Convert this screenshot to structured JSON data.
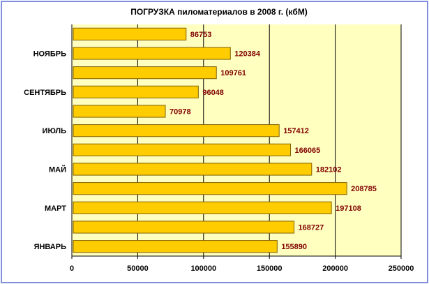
{
  "chart_data": {
    "type": "bar",
    "orientation": "horizontal",
    "title": "ПОГРУЗКА пиломатериалов  в 2008 г. (кбМ)",
    "xlabel": "",
    "ylabel": "",
    "categories": [
      "ЯНВАРЬ",
      "",
      "МАРТ",
      "",
      "МАЙ",
      "",
      "ИЮЛЬ",
      "",
      "СЕНТЯБРЬ",
      "",
      "НОЯБРЬ",
      ""
    ],
    "values": [
      155890,
      168727,
      197108,
      208785,
      182102,
      166065,
      157412,
      70978,
      96048,
      109761,
      120384,
      86753
    ],
    "data_labels": [
      "155890",
      "168727",
      "197108",
      "208785",
      "182102",
      "166065",
      "157412",
      "70978",
      "96048",
      "109761",
      "120384",
      "86753"
    ],
    "xlim": [
      0,
      250000
    ],
    "x_ticks": [
      0,
      50000,
      100000,
      150000,
      200000,
      250000
    ],
    "x_tick_labels": [
      "0",
      "50000",
      "100000",
      "150000",
      "200000",
      "250000"
    ],
    "grid": true,
    "legend": "none",
    "colors": {
      "bar_fill": "#ffcc00",
      "bar_stroke": "#806000",
      "plot_background": "#ffffc0",
      "data_label": "#800000",
      "gridline": "#000000",
      "frame_border": "#7f8fe0"
    }
  }
}
